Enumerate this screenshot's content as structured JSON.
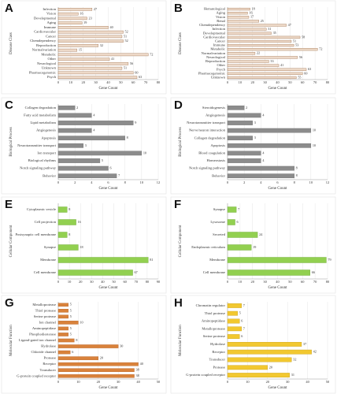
{
  "chart_data": [
    {
      "type": "bar",
      "title": "A",
      "orientation": "horizontal",
      "y_label": "Disease Class",
      "x_label": "Gene Count",
      "color": "#edd9c8",
      "edge_color": "#a0724f",
      "categories": [
        "Infection",
        "Vision",
        "Developmental",
        "Aging",
        "Immune",
        "Cardiovascular",
        "Cancer",
        "Chemdependency",
        "Reproduction",
        "Normalvariation",
        "Metabolic",
        "Other",
        "Neurological",
        "Unknown",
        "Pharmacogenomic",
        "Psych"
      ],
      "values": [
        27,
        16,
        23,
        19,
        40,
        52,
        51,
        52,
        32,
        15,
        72,
        41,
        56,
        51,
        60,
        63
      ],
      "xlim": [
        0,
        80
      ],
      "xticks": [
        0,
        10,
        20,
        30,
        40,
        50,
        60,
        70,
        80
      ],
      "grid": true
    },
    {
      "type": "bar",
      "title": "B",
      "orientation": "horizontal",
      "y_label": "Disease Class",
      "x_label": "Gene Count",
      "color": "#edd9c8",
      "edge_color": "#a0724f",
      "categories": [
        "Hematological",
        "Aging",
        "Vision",
        "Renal",
        "Chemdependency",
        "Infection",
        "Developmental",
        "Cardiovascular",
        "Cancer",
        "Immune",
        "Metabolic",
        "Normalvariation",
        "Neurological",
        "Reproduction",
        "Other",
        "Psych",
        "Pharmacogenomic",
        "Unknown"
      ],
      "values": [
        18,
        16,
        17,
        25,
        47,
        31,
        35,
        58,
        51,
        53,
        72,
        22,
        56,
        33,
        41,
        63,
        60,
        55
      ],
      "xlim": [
        0,
        80
      ],
      "xticks": [
        0,
        10,
        20,
        30,
        40,
        50,
        60,
        70,
        80
      ],
      "grid": true
    },
    {
      "type": "bar",
      "title": "C",
      "orientation": "horizontal",
      "y_label": "Biological Process",
      "x_label": "Gene Count",
      "color": "#8c8c8c",
      "edge_color": "#6e6e6e",
      "categories": [
        "Collagen degradation",
        "Fatty acid metabolism",
        "Lipid metabolism",
        "Angiogenesis",
        "Apoptosis",
        "Neurotransmitter transport",
        "Ion transport",
        "Biological rhythms",
        "Notch signaling pathway",
        "Behavior"
      ],
      "values": [
        2,
        4,
        9,
        4,
        8,
        3,
        10,
        5,
        6,
        7
      ],
      "xlim": [
        0,
        12
      ],
      "xticks": [
        0,
        2,
        4,
        6,
        8,
        10,
        12
      ],
      "grid": true
    },
    {
      "type": "bar",
      "title": "D",
      "orientation": "horizontal",
      "y_label": "Biological Process",
      "x_label": "Gene Count",
      "color": "#8c8c8c",
      "edge_color": "#6e6e6e",
      "categories": [
        "Steroidogenesis",
        "Angiogenesis",
        "Neurotransmitter transport",
        "Nerve/neuron interaction",
        "Collagen degradation",
        "Apoptosis",
        "Blood coagulation",
        "Homeostasis",
        "Notch signaling pathway",
        "Behavior"
      ],
      "values": [
        2,
        4,
        3,
        10,
        3,
        10,
        4,
        4,
        8,
        8
      ],
      "xlim": [
        0,
        12
      ],
      "xticks": [
        0,
        2,
        4,
        6,
        8,
        10,
        12
      ],
      "grid": true
    },
    {
      "type": "bar",
      "title": "E",
      "orientation": "horizontal",
      "y_label": "Cellular Component",
      "x_label": "Gene Count",
      "color": "#92d050",
      "edge_color": "#6fa838",
      "categories": [
        "Cytoplasmic vesicle",
        "Cell projection",
        "Postsynaptic cell membrane",
        "Synapse",
        "Membrane",
        "Cell membrane"
      ],
      "values": [
        8,
        16,
        8,
        18,
        81,
        67
      ],
      "xlim": [
        0,
        90
      ],
      "xticks": [
        0,
        10,
        20,
        30,
        40,
        50,
        60,
        70,
        80,
        90
      ],
      "grid": true
    },
    {
      "type": "bar",
      "title": "F",
      "orientation": "horizontal",
      "y_label": "Cellular Component",
      "x_label": "Gene Count",
      "color": "#92d050",
      "edge_color": "#6fa838",
      "categories": [
        "Synapse",
        "Lysosome",
        "Secreted",
        "Endoplasmic reticulum",
        "Membrane",
        "Cell membrane"
      ],
      "values": [
        7,
        6,
        24,
        19,
        79,
        66
      ],
      "xlim": [
        0,
        80
      ],
      "xticks": [
        0,
        10,
        20,
        30,
        40,
        50,
        60,
        70,
        80
      ],
      "grid": true
    },
    {
      "type": "bar",
      "title": "G",
      "orientation": "horizontal",
      "y_label": "Molecular Function",
      "x_label": "Gene Count",
      "color": "#d9823b",
      "edge_color": "#b8652a",
      "categories": [
        "Metalloprotease",
        "Thiol protease",
        "Serine protease",
        "Ion channel",
        "Aminopeptidase",
        "Phosphodiesterase",
        "Ligand-gated ion channel",
        "Hydrolase",
        "Chloride channel",
        "Protease",
        "Receptor",
        "Transducer",
        "G-protein coupled receptor"
      ],
      "values": [
        5,
        5,
        5,
        10,
        5,
        5,
        8,
        30,
        6,
        20,
        40,
        38,
        38
      ],
      "xlim": [
        0,
        50
      ],
      "xticks": [
        0,
        10,
        20,
        30,
        40,
        50
      ],
      "grid": true
    },
    {
      "type": "bar",
      "title": "H",
      "orientation": "horizontal",
      "y_label": "Molecular Function",
      "x_label": "Gene Count",
      "color": "#f2c830",
      "edge_color": "#c9a21c",
      "categories": [
        "Chromatin regulator",
        "Thiol protease",
        "Aminopeptidase",
        "Metalloprotease",
        "Serine protease",
        "Hydrolase",
        "Receptor",
        "Transducer",
        "Protease",
        "G-protein coupled receptor"
      ],
      "values": [
        7,
        5,
        6,
        7,
        6,
        37,
        42,
        32,
        20,
        31
      ],
      "xlim": [
        0,
        50
      ],
      "xticks": [
        0,
        10,
        20,
        30,
        40,
        50
      ],
      "grid": true
    }
  ]
}
